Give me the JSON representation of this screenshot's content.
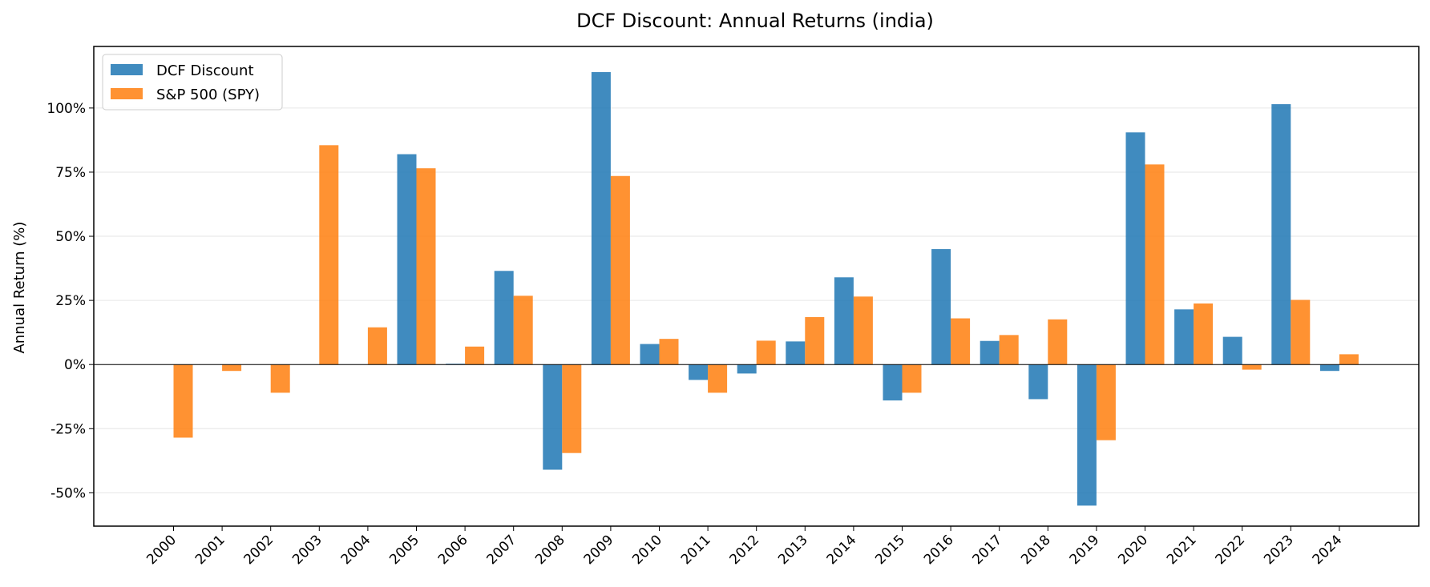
{
  "chart_data": {
    "type": "bar",
    "title": "DCF Discount: Annual Returns (india)",
    "xlabel": "",
    "ylabel": "Annual Return (%)",
    "ylim": [
      -63,
      124
    ],
    "yticks": [
      -50,
      -25,
      0,
      25,
      50,
      75,
      100
    ],
    "ytick_labels": [
      "-50%",
      "-25%",
      "0%",
      "25%",
      "50%",
      "75%",
      "100%"
    ],
    "grid": "horizontal",
    "legend_position": "upper-left",
    "categories": [
      "2000",
      "2001",
      "2002",
      "2003",
      "2004",
      "2005",
      "2006",
      "2007",
      "2008",
      "2009",
      "2010",
      "2011",
      "2012",
      "2013",
      "2014",
      "2015",
      "2016",
      "2017",
      "2018",
      "2019",
      "2020",
      "2021",
      "2022",
      "2023",
      "2024"
    ],
    "series": [
      {
        "name": "DCF Discount",
        "color": "#1f77b4",
        "values": [
          0,
          0,
          0,
          0,
          0,
          82,
          0.3,
          36.5,
          -41,
          114,
          8,
          -6,
          -3.5,
          9,
          34,
          -14,
          45,
          9.2,
          -13.5,
          -55,
          90.5,
          21.5,
          10.8,
          101.5,
          -2.5
        ]
      },
      {
        "name": "S&P 500 (SPY)",
        "color": "#ff7f0e",
        "values": [
          -28.5,
          -2.5,
          -11,
          85.5,
          14.5,
          76.5,
          7,
          26.8,
          -34.5,
          73.5,
          10,
          -11,
          9.3,
          18.5,
          26.5,
          -11,
          18,
          11.5,
          17.6,
          -29.5,
          78,
          23.8,
          -2,
          25.2,
          4
        ]
      }
    ]
  }
}
